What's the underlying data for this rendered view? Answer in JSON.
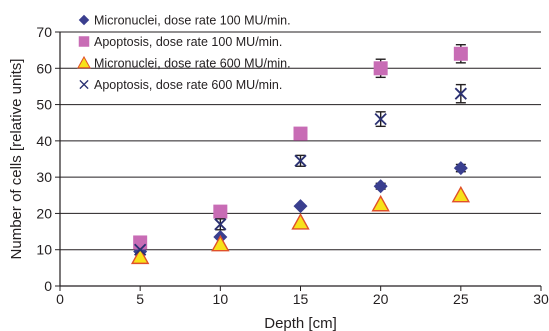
{
  "chart_data": {
    "type": "scatter",
    "title": "",
    "xlabel": "Depth [cm]",
    "ylabel": "Number of cells [relative units]",
    "xlim": [
      0,
      30
    ],
    "ylim": [
      0,
      70
    ],
    "xticks": [
      0,
      5,
      10,
      15,
      20,
      25,
      30
    ],
    "yticks": [
      0,
      10,
      20,
      30,
      40,
      50,
      60,
      70
    ],
    "grid": "horizontal",
    "legend_position": "top-left",
    "series": [
      {
        "name": "Micronuclei, dose rate 100 MU/min.",
        "marker": "diamond",
        "color": "#3a3f8f",
        "x": [
          5,
          10,
          15,
          20,
          25
        ],
        "y": [
          9.5,
          13.5,
          22,
          27.5,
          32.5
        ],
        "err": [
          0,
          0,
          0,
          0.8,
          1
        ]
      },
      {
        "name": "Apoptosis, dose rate 100 MU/min.",
        "marker": "square",
        "color": "#c86cb5",
        "x": [
          5,
          10,
          15,
          20,
          25
        ],
        "y": [
          12,
          20.5,
          42,
          60,
          64
        ],
        "err": [
          0,
          0,
          0,
          2.5,
          2.5
        ]
      },
      {
        "name": "Micronuclei, dose rate 600 MU/min.",
        "marker": "triangle",
        "color": "#f7e11a",
        "edge": "#e0502a",
        "x": [
          5,
          10,
          15,
          20,
          25
        ],
        "y": [
          8,
          11.5,
          17.5,
          22.5,
          25
        ],
        "err": [
          0,
          0,
          0,
          0,
          0
        ]
      },
      {
        "name": "Apoptosis, dose rate 600 MU/min.",
        "marker": "x",
        "color": "#2b3173",
        "x": [
          5,
          10,
          15,
          20,
          25
        ],
        "y": [
          10,
          17,
          34.5,
          46,
          53
        ],
        "err": [
          0,
          1.5,
          1.5,
          2,
          2.5
        ]
      }
    ]
  }
}
